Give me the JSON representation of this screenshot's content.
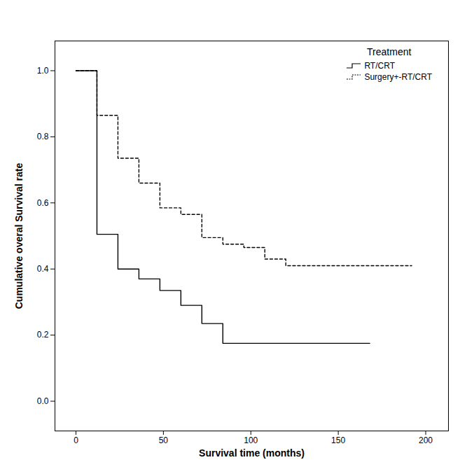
{
  "chart_data": {
    "type": "step",
    "x_label": "Survival time (months)",
    "y_label": "Cumulative overal Survival rate",
    "legend_title": "Treatment",
    "legend": "top-right",
    "grid": false,
    "series": [
      {
        "name": "RT/CRT",
        "color": "#000000",
        "line_style": "solid",
        "x": [
          0,
          12,
          24,
          36,
          48,
          60,
          72,
          84,
          168
        ],
        "values": [
          1.0,
          0.505,
          0.4,
          0.37,
          0.335,
          0.29,
          0.235,
          0.175,
          0.175
        ]
      },
      {
        "name": "Surgery+-RT/CRT",
        "color": "#000000",
        "line_style": "dashed",
        "x": [
          0,
          12,
          24,
          36,
          48,
          60,
          72,
          84,
          96,
          108,
          120,
          192
        ],
        "values": [
          1.0,
          0.865,
          0.735,
          0.66,
          0.585,
          0.565,
          0.495,
          0.475,
          0.465,
          0.43,
          0.41,
          0.41
        ]
      }
    ],
    "xlim": [
      -12,
      213
    ],
    "xticks": [
      0,
      50,
      100,
      150,
      200
    ],
    "ylim": [
      -0.09,
      1.09
    ],
    "yticks": [
      {
        "value": 0,
        "label": "0.0"
      },
      {
        "value": 0.2,
        "label": "0.2"
      },
      {
        "value": 0.4,
        "label": "0.4"
      },
      {
        "value": 0.6,
        "label": "0.6"
      },
      {
        "value": 0.8,
        "label": "0.8"
      },
      {
        "value": 1,
        "label": "1.0"
      }
    ]
  }
}
